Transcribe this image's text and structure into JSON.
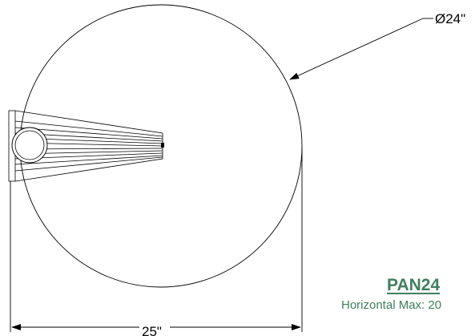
{
  "drawing": {
    "diameter_label": "Ø24\"",
    "width_label": "25\""
  },
  "title_block": {
    "product_code": "PAN24",
    "spec_line": "Horizontal Max: 20"
  },
  "colors": {
    "line": "#000000",
    "title_text": "#3f7f5f",
    "background": "#ffffff"
  }
}
